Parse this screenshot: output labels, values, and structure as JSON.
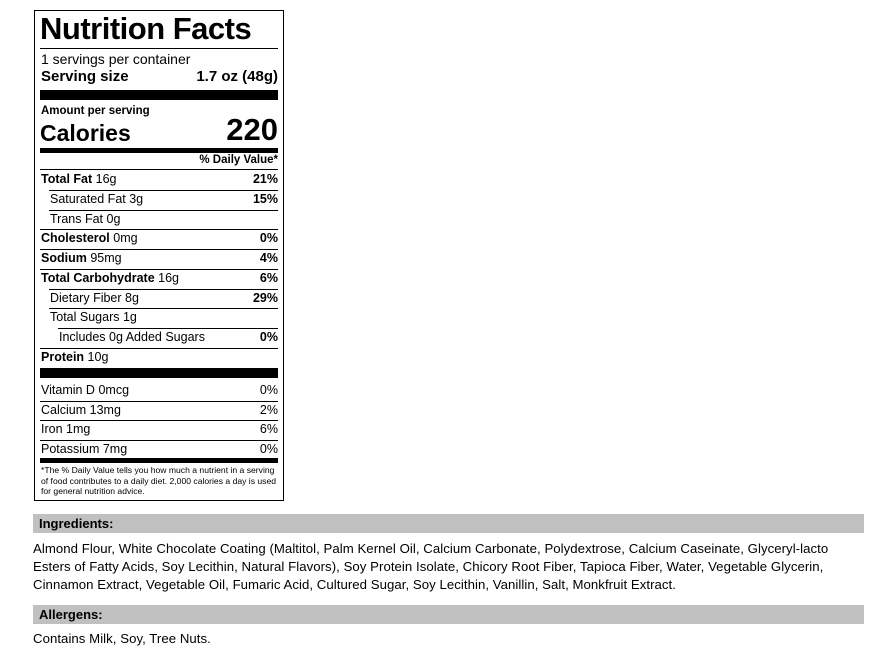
{
  "label": {
    "title": "Nutrition Facts",
    "servings": "1 servings per container",
    "serving_size_label": "Serving size",
    "serving_size_value": "1.7 oz (48g)",
    "amount_per_serving": "Amount per serving",
    "calories_label": "Calories",
    "calories_value": "220",
    "dv_header": "% Daily Value*",
    "nutrients": [
      {
        "name": "Total Fat",
        "amount": "16g",
        "dv": "21%"
      },
      {
        "name": "Saturated Fat",
        "amount": "3g",
        "dv": "15%"
      },
      {
        "name": "Trans Fat",
        "amount": "0g"
      },
      {
        "name": "Cholesterol",
        "amount": "0mg",
        "dv": "0%"
      },
      {
        "name": "Sodium",
        "amount": "95mg",
        "dv": "4%"
      },
      {
        "name": "Total Carbohydrate",
        "amount": "16g",
        "dv": "6%"
      },
      {
        "name": "Dietary Fiber",
        "amount": "8g",
        "dv": "29%"
      },
      {
        "name": "Total Sugars",
        "amount": "1g"
      },
      {
        "name": "Includes 0g Added Sugars",
        "dv": "0%"
      },
      {
        "name": "Protein",
        "amount": "10g"
      }
    ],
    "vitamins": [
      {
        "name": "Vitamin D",
        "amount": "0mcg",
        "dv": "0%"
      },
      {
        "name": "Calcium",
        "amount": "13mg",
        "dv": "2%"
      },
      {
        "name": "Iron",
        "amount": "1mg",
        "dv": "6%"
      },
      {
        "name": "Potassium",
        "amount": "7mg",
        "dv": "0%"
      }
    ],
    "footnote": "*The % Daily Value tells you how much a nutrient in a serving of food contributes to a daily diet. 2,000 calories a day is used for general nutrition advice."
  },
  "ingredients": {
    "header": "Ingredients:",
    "lines": [
      "Almond Flour, White Chocolate Coating (Maltitol, Palm Kernel Oil, Calcium Carbonate, Polydextrose, Calcium Caseinate, Glyceryl-lacto",
      "Esters of Fatty Acids, Soy Lecithin, Natural Flavors), Soy Protein Isolate, Chicory Root Fiber, Tapioca Fiber, Water, Vegetable Glycerin,",
      "Cinnamon Extract, Vegetable Oil, Fumaric Acid, Cultured Sugar, Soy Lecithin, Vanillin, Salt, Monkfruit Extract."
    ]
  },
  "allergens": {
    "header": "Allergens:",
    "text": "Contains Milk, Soy, Tree Nuts."
  }
}
